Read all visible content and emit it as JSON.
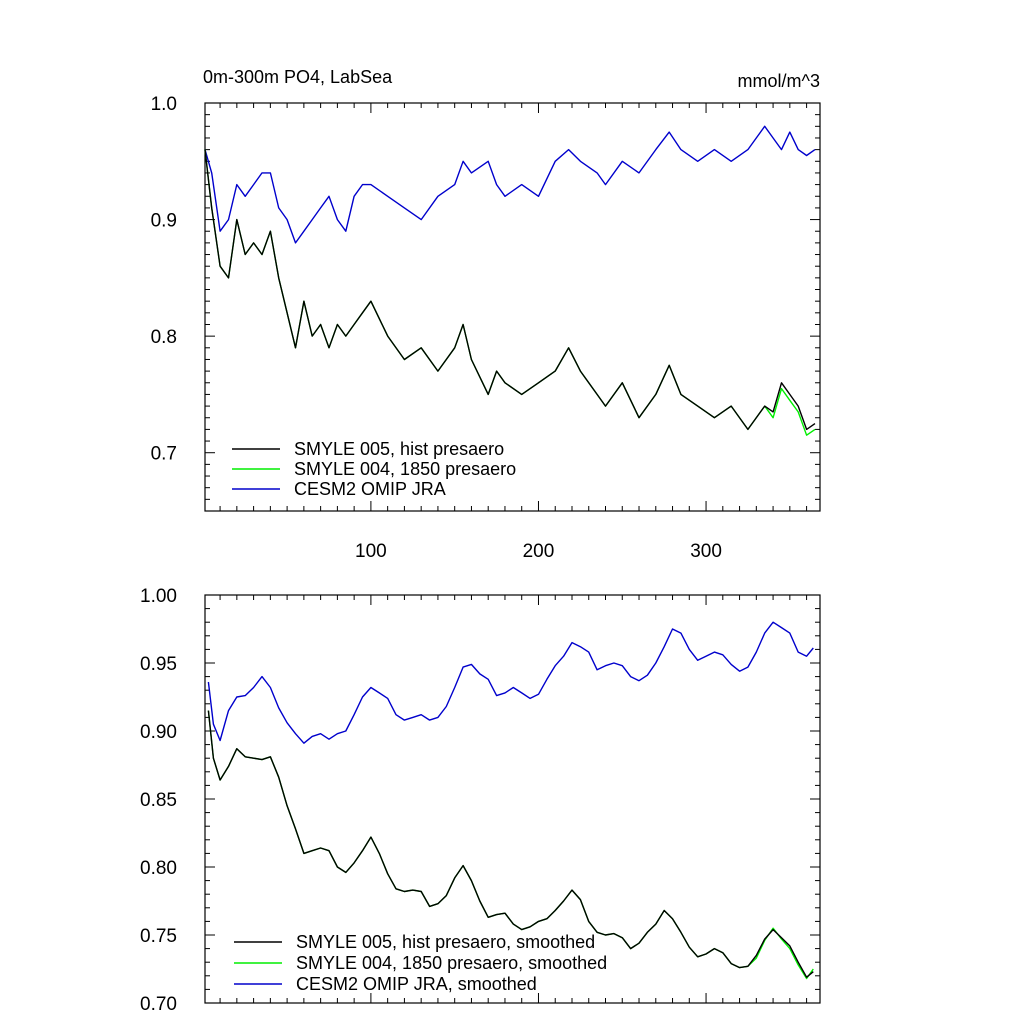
{
  "figure": {
    "title_left": "0m-300m PO4, LabSea",
    "title_right": "mmol/m^3"
  },
  "colors": {
    "smyle005": "#000000",
    "smyle004": "#00ee00",
    "omip": "#0000cc"
  },
  "chart_data": [
    {
      "type": "line",
      "title": "0m-300m PO4, LabSea",
      "units": "mmol/m^3",
      "xlim": [
        1,
        368
      ],
      "ylim": [
        0.65,
        1.0
      ],
      "xticks": [
        100,
        200,
        300
      ],
      "yticks": [
        0.7,
        0.8,
        0.9,
        1.0
      ],
      "ytick_labels": [
        "0.7",
        "0.8",
        "0.9",
        "1.0"
      ],
      "x": [
        1,
        5,
        10,
        15,
        20,
        25,
        30,
        35,
        40,
        45,
        50,
        55,
        60,
        65,
        70,
        75,
        80,
        85,
        90,
        95,
        100,
        110,
        120,
        130,
        140,
        150,
        155,
        160,
        170,
        175,
        180,
        190,
        200,
        210,
        218,
        225,
        235,
        240,
        250,
        260,
        270,
        278,
        285,
        295,
        305,
        315,
        325,
        335,
        340,
        345,
        350,
        355,
        360,
        365
      ],
      "series": [
        {
          "name": "SMYLE 005, hist presaero",
          "color_key": "smyle005",
          "values": [
            0.96,
            0.91,
            0.86,
            0.85,
            0.9,
            0.87,
            0.88,
            0.87,
            0.89,
            0.85,
            0.82,
            0.79,
            0.83,
            0.8,
            0.81,
            0.79,
            0.81,
            0.8,
            0.81,
            0.82,
            0.83,
            0.8,
            0.78,
            0.79,
            0.77,
            0.79,
            0.81,
            0.78,
            0.75,
            0.77,
            0.76,
            0.75,
            0.76,
            0.77,
            0.79,
            0.77,
            0.75,
            0.74,
            0.76,
            0.73,
            0.75,
            0.775,
            0.75,
            0.74,
            0.73,
            0.74,
            0.72,
            0.74,
            0.735,
            0.76,
            0.75,
            0.74,
            0.72,
            0.725
          ]
        },
        {
          "name": "SMYLE 004, 1850 presaero",
          "color_key": "smyle004",
          "values": [
            0.96,
            0.91,
            0.86,
            0.85,
            0.9,
            0.87,
            0.88,
            0.87,
            0.89,
            0.85,
            0.82,
            0.79,
            0.83,
            0.8,
            0.81,
            0.79,
            0.81,
            0.8,
            0.81,
            0.82,
            0.83,
            0.8,
            0.78,
            0.79,
            0.77,
            0.79,
            0.81,
            0.78,
            0.75,
            0.77,
            0.76,
            0.75,
            0.76,
            0.77,
            0.79,
            0.77,
            0.75,
            0.74,
            0.76,
            0.73,
            0.75,
            0.775,
            0.75,
            0.74,
            0.73,
            0.74,
            0.72,
            0.74,
            0.73,
            0.755,
            0.745,
            0.735,
            0.715,
            0.72
          ]
        },
        {
          "name": "CESM2 OMIP JRA",
          "color_key": "omip",
          "values": [
            0.96,
            0.94,
            0.89,
            0.9,
            0.93,
            0.92,
            0.93,
            0.94,
            0.94,
            0.91,
            0.9,
            0.88,
            0.89,
            0.9,
            0.91,
            0.92,
            0.9,
            0.89,
            0.92,
            0.93,
            0.93,
            0.92,
            0.91,
            0.9,
            0.92,
            0.93,
            0.95,
            0.94,
            0.95,
            0.93,
            0.92,
            0.93,
            0.92,
            0.95,
            0.96,
            0.95,
            0.94,
            0.93,
            0.95,
            0.94,
            0.96,
            0.975,
            0.96,
            0.95,
            0.96,
            0.95,
            0.96,
            0.98,
            0.97,
            0.96,
            0.975,
            0.96,
            0.955,
            0.96
          ]
        }
      ]
    },
    {
      "type": "line",
      "xlim": [
        1,
        368
      ],
      "ylim": [
        0.7,
        1.0
      ],
      "xticks": [
        100,
        200,
        300
      ],
      "yticks": [
        0.7,
        0.75,
        0.8,
        0.85,
        0.9,
        0.95,
        1.0
      ],
      "ytick_labels": [
        "0.70",
        "0.75",
        "0.80",
        "0.85",
        "0.90",
        "0.95",
        "1.00"
      ],
      "x": [
        3,
        6,
        10,
        15,
        20,
        25,
        30,
        35,
        40,
        45,
        50,
        55,
        60,
        65,
        70,
        75,
        80,
        85,
        90,
        95,
        100,
        105,
        110,
        115,
        120,
        125,
        130,
        135,
        140,
        145,
        150,
        155,
        160,
        165,
        170,
        175,
        180,
        185,
        190,
        195,
        200,
        205,
        210,
        215,
        220,
        225,
        230,
        235,
        240,
        245,
        250,
        255,
        260,
        265,
        270,
        275,
        280,
        285,
        290,
        295,
        300,
        305,
        310,
        315,
        320,
        325,
        330,
        335,
        340,
        345,
        350,
        355,
        360,
        364
      ],
      "series": [
        {
          "name": "SMYLE 005, hist presaero, smoothed",
          "color_key": "smyle005",
          "values": [
            0.915,
            0.88,
            0.864,
            0.874,
            0.887,
            0.881,
            0.88,
            0.879,
            0.881,
            0.866,
            0.845,
            0.828,
            0.81,
            0.812,
            0.814,
            0.812,
            0.8,
            0.796,
            0.803,
            0.812,
            0.822,
            0.81,
            0.795,
            0.784,
            0.782,
            0.783,
            0.782,
            0.771,
            0.773,
            0.779,
            0.792,
            0.801,
            0.79,
            0.775,
            0.763,
            0.765,
            0.766,
            0.758,
            0.754,
            0.756,
            0.76,
            0.762,
            0.768,
            0.775,
            0.783,
            0.776,
            0.76,
            0.752,
            0.75,
            0.751,
            0.748,
            0.74,
            0.744,
            0.752,
            0.758,
            0.768,
            0.762,
            0.752,
            0.741,
            0.734,
            0.736,
            0.74,
            0.737,
            0.729,
            0.726,
            0.727,
            0.735,
            0.747,
            0.754,
            0.748,
            0.742,
            0.73,
            0.719,
            0.723
          ]
        },
        {
          "name": "SMYLE 004, 1850 presaero, smoothed",
          "color_key": "smyle004",
          "values": [
            0.915,
            0.88,
            0.864,
            0.874,
            0.887,
            0.881,
            0.88,
            0.879,
            0.881,
            0.866,
            0.845,
            0.828,
            0.81,
            0.812,
            0.814,
            0.812,
            0.8,
            0.796,
            0.803,
            0.812,
            0.822,
            0.81,
            0.795,
            0.784,
            0.782,
            0.783,
            0.782,
            0.771,
            0.773,
            0.779,
            0.792,
            0.801,
            0.79,
            0.775,
            0.763,
            0.765,
            0.766,
            0.758,
            0.754,
            0.756,
            0.76,
            0.762,
            0.768,
            0.775,
            0.783,
            0.776,
            0.76,
            0.752,
            0.75,
            0.751,
            0.748,
            0.74,
            0.744,
            0.752,
            0.758,
            0.768,
            0.762,
            0.752,
            0.741,
            0.734,
            0.736,
            0.74,
            0.737,
            0.729,
            0.726,
            0.727,
            0.733,
            0.746,
            0.755,
            0.747,
            0.74,
            0.728,
            0.718,
            0.725
          ]
        },
        {
          "name": "CESM2 OMIP JRA, smoothed",
          "color_key": "omip",
          "values": [
            0.936,
            0.905,
            0.893,
            0.915,
            0.925,
            0.926,
            0.932,
            0.94,
            0.932,
            0.917,
            0.906,
            0.898,
            0.891,
            0.896,
            0.898,
            0.894,
            0.898,
            0.9,
            0.912,
            0.925,
            0.932,
            0.928,
            0.924,
            0.912,
            0.908,
            0.91,
            0.912,
            0.908,
            0.91,
            0.918,
            0.932,
            0.947,
            0.949,
            0.942,
            0.938,
            0.926,
            0.928,
            0.932,
            0.928,
            0.924,
            0.927,
            0.938,
            0.948,
            0.955,
            0.965,
            0.962,
            0.958,
            0.945,
            0.948,
            0.95,
            0.948,
            0.94,
            0.937,
            0.941,
            0.95,
            0.962,
            0.975,
            0.972,
            0.96,
            0.952,
            0.955,
            0.958,
            0.956,
            0.949,
            0.944,
            0.947,
            0.958,
            0.972,
            0.98,
            0.976,
            0.972,
            0.958,
            0.955,
            0.961
          ]
        }
      ]
    }
  ]
}
